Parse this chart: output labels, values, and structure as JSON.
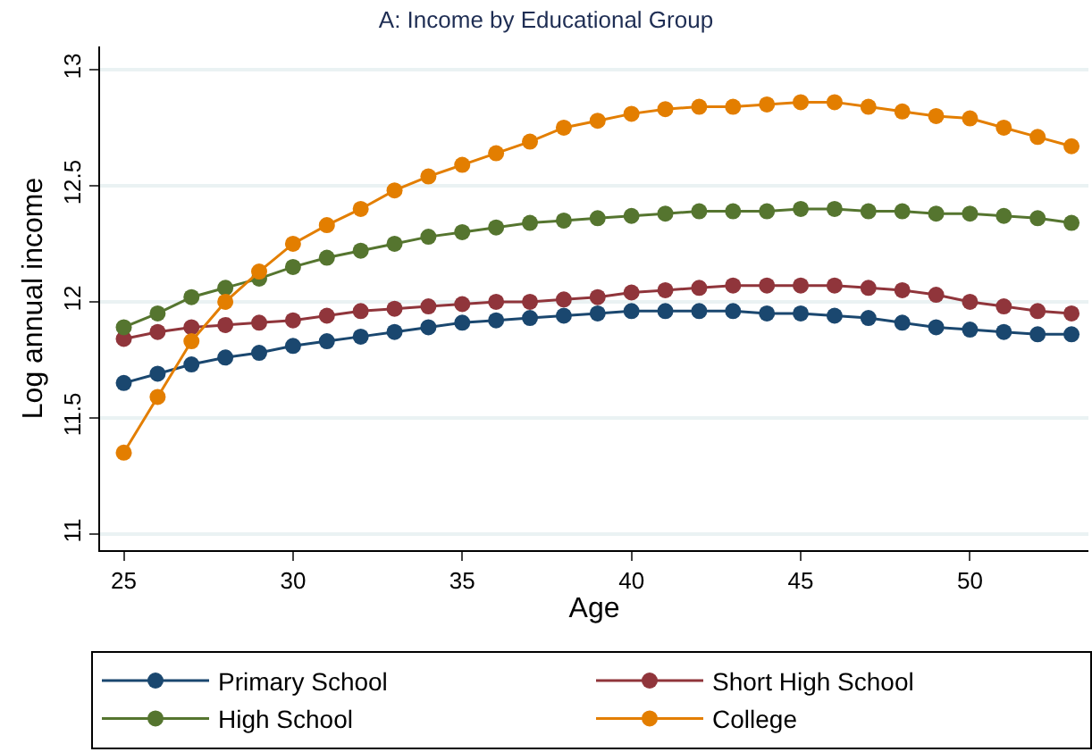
{
  "chart_data": {
    "type": "line",
    "title": "A: Income by Educational Group",
    "xlabel": "Age",
    "ylabel": "Log annual income",
    "x": [
      25,
      26,
      27,
      28,
      29,
      30,
      31,
      32,
      33,
      34,
      35,
      36,
      37,
      38,
      39,
      40,
      41,
      42,
      43,
      44,
      45,
      46,
      47,
      48,
      49,
      50,
      51,
      52,
      53
    ],
    "series": [
      {
        "name": "Primary School",
        "color": "#1a476f",
        "values": [
          11.65,
          11.69,
          11.73,
          11.76,
          11.78,
          11.81,
          11.83,
          11.85,
          11.87,
          11.89,
          11.91,
          11.92,
          11.93,
          11.94,
          11.95,
          11.96,
          11.96,
          11.96,
          11.96,
          11.95,
          11.95,
          11.94,
          11.93,
          11.91,
          11.89,
          11.88,
          11.87,
          11.86,
          11.86
        ]
      },
      {
        "name": "Short High School",
        "color": "#90353b",
        "values": [
          11.84,
          11.87,
          11.89,
          11.9,
          11.91,
          11.92,
          11.94,
          11.96,
          11.97,
          11.98,
          11.99,
          12.0,
          12.0,
          12.01,
          12.02,
          12.04,
          12.05,
          12.06,
          12.07,
          12.07,
          12.07,
          12.07,
          12.06,
          12.05,
          12.03,
          12.0,
          11.98,
          11.96,
          11.95
        ]
      },
      {
        "name": "High School",
        "color": "#55752f",
        "values": [
          11.89,
          11.95,
          12.02,
          12.06,
          12.1,
          12.15,
          12.19,
          12.22,
          12.25,
          12.28,
          12.3,
          12.32,
          12.34,
          12.35,
          12.36,
          12.37,
          12.38,
          12.39,
          12.39,
          12.39,
          12.4,
          12.4,
          12.39,
          12.39,
          12.38,
          12.38,
          12.37,
          12.36,
          12.34
        ]
      },
      {
        "name": "College",
        "color": "#e37e00",
        "values": [
          11.35,
          11.59,
          11.83,
          12.0,
          12.13,
          12.25,
          12.33,
          12.4,
          12.48,
          12.54,
          12.59,
          12.64,
          12.69,
          12.75,
          12.78,
          12.81,
          12.83,
          12.84,
          12.84,
          12.85,
          12.86,
          12.86,
          12.84,
          12.82,
          12.8,
          12.79,
          12.75,
          12.71,
          12.67
        ]
      }
    ],
    "xlim": [
      24.3,
      53.5
    ],
    "xticks": [
      25,
      30,
      35,
      40,
      45,
      50
    ],
    "ylim": [
      10.93,
      13.1
    ],
    "yticks": [
      11,
      11.5,
      12,
      12.5,
      13
    ],
    "grid": "y",
    "legend": "bottom",
    "marker": "circle",
    "line_style": "solid"
  }
}
